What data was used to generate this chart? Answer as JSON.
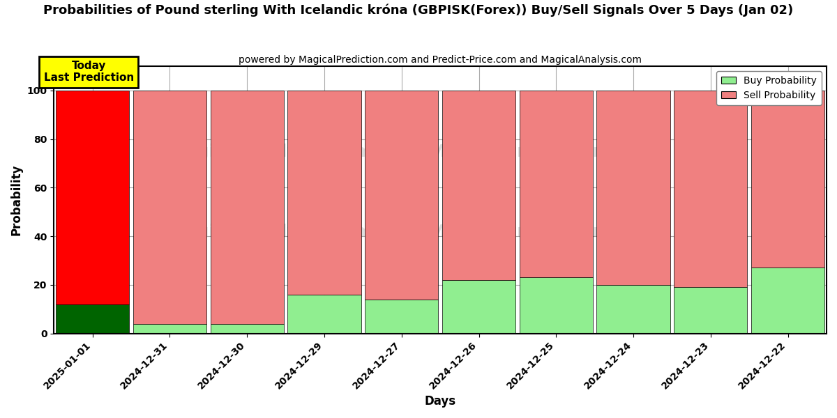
{
  "title": "Probabilities of Pound sterling With Icelandic króna (GBPISK(Forex)) Buy/Sell Signals Over 5 Days (Jan 02)",
  "subtitle": "powered by MagicalPrediction.com and Predict-Price.com and MagicalAnalysis.com",
  "xlabel": "Days",
  "ylabel": "Probability",
  "categories": [
    "2025-01-01",
    "2024-12-31",
    "2024-12-30",
    "2024-12-29",
    "2024-12-27",
    "2024-12-26",
    "2024-12-25",
    "2024-12-24",
    "2024-12-23",
    "2024-12-22"
  ],
  "buy_values": [
    12,
    4,
    4,
    16,
    14,
    22,
    23,
    20,
    19,
    27
  ],
  "sell_values": [
    88,
    96,
    96,
    84,
    86,
    78,
    77,
    80,
    81,
    73
  ],
  "buy_colors": [
    "#006400",
    "#90EE90",
    "#90EE90",
    "#90EE90",
    "#90EE90",
    "#90EE90",
    "#90EE90",
    "#90EE90",
    "#90EE90",
    "#90EE90"
  ],
  "sell_colors": [
    "#FF0000",
    "#F08080",
    "#F08080",
    "#F08080",
    "#F08080",
    "#F08080",
    "#F08080",
    "#F08080",
    "#F08080",
    "#F08080"
  ],
  "today_label": "Today\nLast Prediction",
  "today_bg": "#FFFF00",
  "legend_buy_color": "#90EE90",
  "legend_sell_color": "#F08080",
  "ylim": [
    0,
    110
  ],
  "yticks": [
    0,
    20,
    40,
    60,
    80,
    100
  ],
  "dashed_line_y": 110,
  "background_color": "#ffffff",
  "grid_color": "#aaaaaa",
  "bar_width": 0.95
}
